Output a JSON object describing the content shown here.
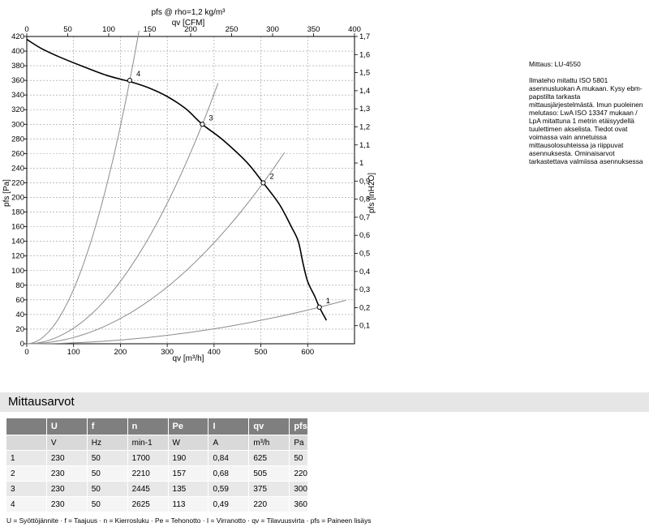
{
  "chart_data": {
    "type": "line",
    "title": "pfs @ rho=1,2 kg/m³",
    "xlabel": "qv [m³/h]",
    "x2label": "qv [CFM]",
    "ylabel": "pfs [Pa]",
    "y2label": "pfs [inH2O]",
    "xlim": [
      0,
      700
    ],
    "ylim": [
      0,
      420
    ],
    "x2lim": [
      0,
      400
    ],
    "y2lim": [
      0,
      1.7
    ],
    "x_ticks": [
      0,
      100,
      200,
      300,
      400,
      500,
      600
    ],
    "y_ticks": [
      0,
      20,
      40,
      60,
      80,
      100,
      120,
      140,
      160,
      180,
      200,
      220,
      240,
      260,
      280,
      300,
      320,
      340,
      360,
      380,
      400,
      420
    ],
    "x2_ticks": [
      0,
      50,
      100,
      150,
      200,
      250,
      300,
      350,
      400
    ],
    "y2_ticks": [
      0.1,
      0.2,
      0.3,
      0.4,
      0.5,
      0.6,
      0.7,
      0.8,
      0.9,
      1,
      1.1,
      1.2,
      1.3,
      1.4,
      1.5,
      1.6,
      1.7
    ],
    "y2_tick_labels": [
      "0,1",
      "0,2",
      "0,3",
      "0,4",
      "0,5",
      "0,6",
      "0,7",
      "0,8",
      "0,9",
      "1",
      "1,1",
      "1,2",
      "1,3",
      "1,4",
      "1,5",
      "1,6",
      "1,7"
    ],
    "grid": true,
    "fan_curve": {
      "x": [
        0,
        30,
        70,
        120,
        170,
        222,
        260,
        300,
        340,
        375,
        420,
        470,
        505,
        540,
        565,
        580,
        590,
        600,
        615,
        625,
        640
      ],
      "y": [
        416,
        404,
        392,
        379,
        367,
        358,
        350,
        338,
        321,
        300,
        278,
        248,
        220,
        190,
        160,
        140,
        110,
        85,
        65,
        50,
        32
      ]
    },
    "operating_points": [
      {
        "label": "1",
        "x": 625,
        "y": 50
      },
      {
        "label": "2",
        "x": 505,
        "y": 220
      },
      {
        "label": "3",
        "x": 375,
        "y": 300
      },
      {
        "label": "4",
        "x": 220,
        "y": 360
      }
    ]
  },
  "notes": {
    "title": "Mittaus: LU-4550",
    "body": "Ilmateho mitattu ISO 5801 asennusluokan A mukaan. Kysy ebm-papstilta tarkasta mittausjärjestelmästä. Imun puoleinen melutaso: LwA  ISO 13347 mukaan / LpA mitattuna 1 metrin etäisyydellä tuulettimen akselista. Tiedot ovat voimassa vain annetuissa mittausolosuhteissa ja riippuvat asennuksesta. Ominaisarvot tarkastettava valmiissa asennuksessa"
  },
  "section_title": "Mittausarvot",
  "table": {
    "headers": [
      "",
      "U",
      "f",
      "n",
      "Pe",
      "I",
      "qv",
      "pfs"
    ],
    "units": [
      "",
      "V",
      "Hz",
      "min-1",
      "W",
      "A",
      "m³/h",
      "Pa"
    ],
    "rows": [
      [
        "1",
        "230",
        "50",
        "1700",
        "190",
        "0,84",
        "625",
        "50"
      ],
      [
        "2",
        "230",
        "50",
        "2210",
        "157",
        "0,68",
        "505",
        "220"
      ],
      [
        "3",
        "230",
        "50",
        "2445",
        "135",
        "0,59",
        "375",
        "300"
      ],
      [
        "4",
        "230",
        "50",
        "2625",
        "113",
        "0,49",
        "220",
        "360"
      ]
    ]
  },
  "footnote": "U = Syöttöjännite · f = Taajuus · n = Kierrosluku · Pe = Tehonotto · I = Virranotto · qv = Tilavuusvirta · pfs = Paineen lisäys"
}
